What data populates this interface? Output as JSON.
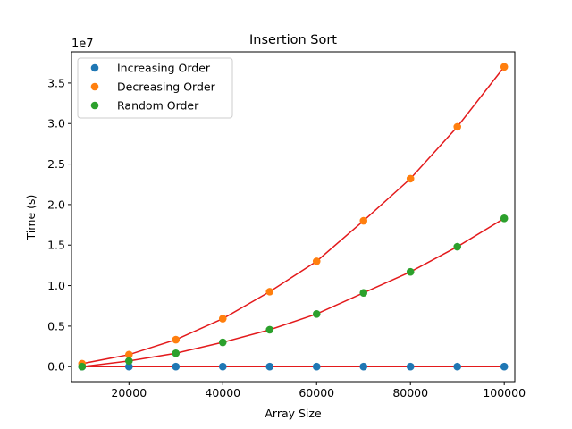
{
  "chart_data": {
    "type": "scatter",
    "title": "Insertion Sort",
    "xlabel": "Array Size",
    "ylabel": "Time (s)",
    "y_offset_label": "1e7",
    "xlim": [
      7750,
      102250
    ],
    "ylim": [
      -1850000,
      38850000
    ],
    "y_scale_factor": 10000000,
    "x_ticks": [
      20000,
      40000,
      60000,
      80000,
      100000
    ],
    "x_tick_labels": [
      "20000",
      "40000",
      "60000",
      "80000",
      "100000"
    ],
    "y_ticks": [
      0,
      5000000,
      10000000,
      15000000,
      20000000,
      25000000,
      30000000,
      35000000
    ],
    "y_tick_labels": [
      "0.0",
      "0.5",
      "1.0",
      "1.5",
      "2.0",
      "2.5",
      "3.0",
      "3.5"
    ],
    "legend_position": "top-left",
    "grid": false,
    "x": [
      10000,
      20000,
      30000,
      40000,
      50000,
      60000,
      70000,
      80000,
      90000,
      100000
    ],
    "series": [
      {
        "name": "Increasing Order",
        "color": "#1f77b4",
        "values": [
          0,
          0,
          0,
          0,
          0,
          0,
          0,
          0,
          0,
          0
        ]
      },
      {
        "name": "Decreasing Order",
        "color": "#ff7f0e",
        "values": [
          370000,
          1480000,
          3330000,
          5920000,
          9250000,
          13000000,
          18000000,
          23200000,
          29600000,
          37000000
        ]
      },
      {
        "name": "Random Order",
        "color": "#2ca02c",
        "values": [
          0,
          700000,
          1650000,
          3000000,
          4550000,
          6500000,
          9100000,
          11700000,
          14800000,
          18300000
        ]
      }
    ],
    "fit_line_color": "#e31a1c"
  }
}
